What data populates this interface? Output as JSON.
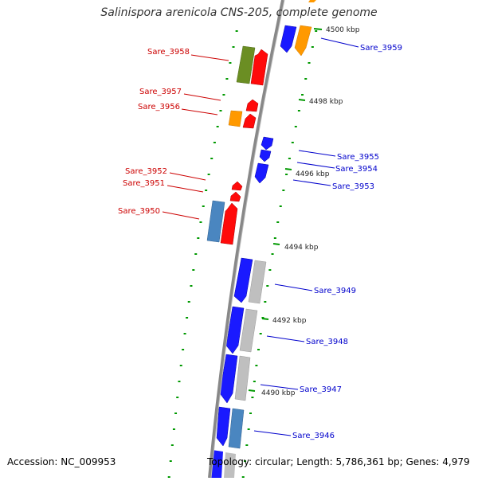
{
  "title": "Salinispora arenicola CNS-205, complete genome",
  "footer": {
    "accession": "Accession: NC_009953",
    "summary": "Topology: circular; Length: 5,786,361 bp; Genes: 4,979"
  },
  "ticks": [
    {
      "label": "4500 kbp"
    },
    {
      "label": "4498 kbp"
    },
    {
      "label": "4496 kbp"
    },
    {
      "label": "4494 kbp"
    },
    {
      "label": "4492 kbp"
    },
    {
      "label": "4490 kbp"
    }
  ],
  "genes": [
    {
      "label": "Sare_3959",
      "strand": "forward",
      "color": "#0000cc"
    },
    {
      "label": "Sare_3958",
      "strand": "reverse",
      "color": "#cc0000"
    },
    {
      "label": "Sare_3957",
      "strand": "reverse",
      "color": "#cc0000"
    },
    {
      "label": "Sare_3956",
      "strand": "reverse",
      "color": "#cc0000"
    },
    {
      "label": "Sare_3955",
      "strand": "forward",
      "color": "#0000cc"
    },
    {
      "label": "Sare_3954",
      "strand": "forward",
      "color": "#0000cc"
    },
    {
      "label": "Sare_3953",
      "strand": "forward",
      "color": "#0000cc"
    },
    {
      "label": "Sare_3952",
      "strand": "reverse",
      "color": "#cc0000"
    },
    {
      "label": "Sare_3951",
      "strand": "reverse",
      "color": "#cc0000"
    },
    {
      "label": "Sare_3950",
      "strand": "reverse",
      "color": "#cc0000"
    },
    {
      "label": "Sare_3949",
      "strand": "forward",
      "color": "#0000cc"
    },
    {
      "label": "Sare_3948",
      "strand": "forward",
      "color": "#0000cc"
    },
    {
      "label": "Sare_3947",
      "strand": "forward",
      "color": "#0000cc"
    },
    {
      "label": "Sare_3946",
      "strand": "forward",
      "color": "#0000cc"
    }
  ],
  "colors": {
    "forward_label": "#0000cc",
    "reverse_label": "#cc0000",
    "backbone": "#888888",
    "dots": "#009900",
    "forward_cds": "#1a1aff",
    "reverse_cds": "#ff0a0a",
    "gray_feature": "#bfbfbf",
    "steel_feature": "#4a86c0",
    "orange_feature": "#ff9900",
    "olive_feature": "#6b8e23"
  }
}
